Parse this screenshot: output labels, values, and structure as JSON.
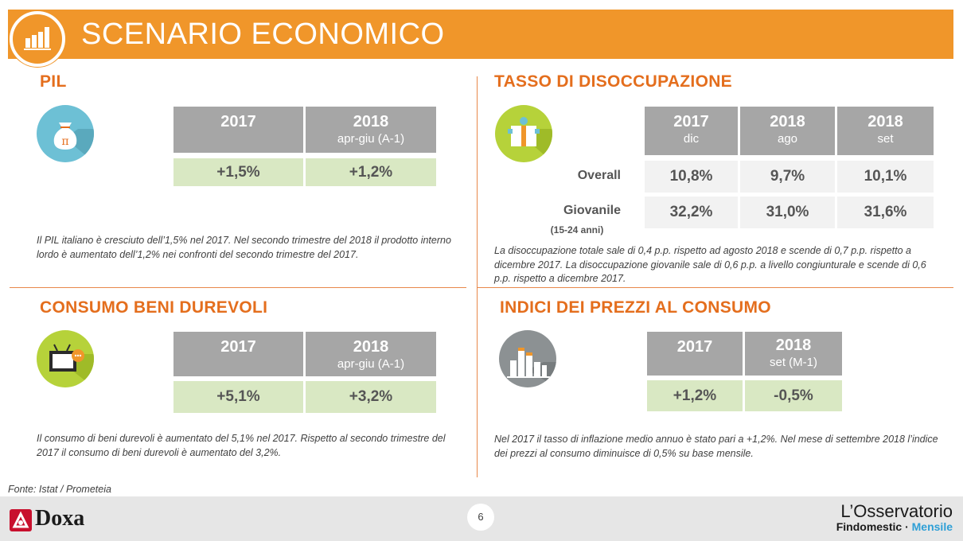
{
  "header": {
    "title": "SCENARIO ECONOMICO"
  },
  "pil": {
    "title": "PIL",
    "headers": [
      {
        "year": "2017",
        "sub": ""
      },
      {
        "year": "2018",
        "sub": "apr-giu (A-1)"
      }
    ],
    "values": [
      "+1,5%",
      "+1,2%"
    ],
    "text": "Il PIL italiano è cresciuto dell’1,5% nel 2017. Nel secondo trimestre del 2018 il prodotto interno lordo è aumentato dell’1,2% nei confronti del secondo trimestre del 2017."
  },
  "disoccupazione": {
    "title": "TASSO DI DISOCCUPAZIONE",
    "headers": [
      {
        "year": "2017",
        "sub": "dic"
      },
      {
        "year": "2018",
        "sub": "ago"
      },
      {
        "year": "2018",
        "sub": "set"
      }
    ],
    "rows": [
      {
        "label": "Overall",
        "sublabel": "",
        "values": [
          "10,8%",
          "9,7%",
          "10,1%"
        ]
      },
      {
        "label": "Giovanile",
        "sublabel": "(15-24 anni)",
        "values": [
          "32,2%",
          "31,0%",
          "31,6%"
        ]
      }
    ],
    "text": "La disoccupazione totale sale di 0,4 p.p. rispetto ad agosto 2018 e scende di 0,7 p.p. rispetto a dicembre 2017. La disoccupazione giovanile sale di 0,6 p.p. a livello congiunturale e scende di 0,6 p.p. rispetto a dicembre 2017."
  },
  "consumo": {
    "title": "CONSUMO BENI DUREVOLI",
    "headers": [
      {
        "year": "2017",
        "sub": ""
      },
      {
        "year": "2018",
        "sub": "apr-giu (A-1)"
      }
    ],
    "values": [
      "+5,1%",
      "+3,2%"
    ],
    "text": "Il consumo di beni durevoli è aumentato del 5,1% nel 2017. Rispetto al secondo trimestre del 2017 il consumo di beni durevoli è aumentato del 3,2%."
  },
  "prezzi": {
    "title": "INDICI DEI PREZZI AL CONSUMO",
    "headers": [
      {
        "year": "2017",
        "sub": ""
      },
      {
        "year": "2018",
        "sub": "set (M-1)"
      }
    ],
    "values": [
      "+1,2%",
      "-0,5%"
    ],
    "text": "Nel 2017 il tasso di inflazione medio annuo è stato pari a +1,2%. Nel mese di settembre 2018 l’indice dei prezzi al consumo diminuisce di 0,5% su base mensile."
  },
  "footer": {
    "source": "Fonte: Istat / Prometeia",
    "brand": "Doxa",
    "page": "6",
    "obs_title": "L’Osservatorio",
    "obs_brand": "Findomestic",
    "obs_sep": " · ",
    "obs_freq": "Mensile"
  },
  "colors": {
    "accent": "#f0962a",
    "title_orange": "#e46e1d",
    "header_cell": "#a6a6a6",
    "value_cell": "#d9e8c3",
    "grey_cell": "#f2f2f2",
    "icon_blue": "#6dc0d5",
    "icon_green": "#b6d23a",
    "icon_grey": "#8c9193",
    "brand_red": "#c8102e",
    "brand_blue": "#2e9fd6"
  },
  "icons": [
    "bar-chart-icon",
    "money-bag-icon",
    "gift-box-icon",
    "television-icon",
    "city-buildings-icon",
    "doxa-logo-icon"
  ]
}
